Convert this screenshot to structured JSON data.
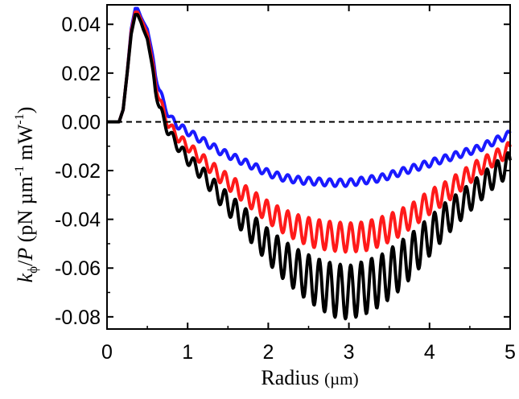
{
  "chart_data": {
    "type": "line",
    "title": "",
    "xlabel": "Radius (µm)",
    "xlabel_parts": {
      "main": "Radius ",
      "unit": "(µm)"
    },
    "ylabel": "kϕ/P (pN µm⁻¹ mW⁻¹)",
    "ylabel_parts": {
      "k": "k",
      "sub": "ϕ",
      "slash": "/",
      "p": "P",
      "open": " (pN µm",
      "exp1": "-1",
      "mid": " mW",
      "exp2": "-1",
      "close": ")"
    },
    "xlim": [
      0,
      5
    ],
    "ylim": [
      -0.085,
      0.048
    ],
    "x_ticks": [
      0,
      1,
      2,
      3,
      4,
      5
    ],
    "x_tick_labels": [
      "0",
      "1",
      "2",
      "3",
      "4",
      "5"
    ],
    "y_ticks": [
      0.04,
      0.02,
      0.0,
      -0.02,
      -0.04,
      -0.06,
      -0.08
    ],
    "y_tick_labels": [
      "0.04",
      "0.02",
      "0.00",
      "-0.02",
      "-0.04",
      "-0.06",
      "-0.08"
    ],
    "grid": false,
    "reference_line": {
      "y": 0.0,
      "style": "dashed",
      "color": "#000000"
    },
    "series": [
      {
        "color": "#1a1aff",
        "x": [
          0.0,
          0.1,
          0.15,
          0.2,
          0.25,
          0.3,
          0.35,
          0.38,
          0.42,
          0.45,
          0.5,
          0.55,
          0.6,
          0.65,
          0.7,
          0.75,
          0.8,
          0.9,
          1.0,
          1.2,
          1.4,
          1.6,
          1.8,
          2.0,
          2.2,
          2.4,
          2.6,
          2.8,
          3.0,
          3.2,
          3.4,
          3.6,
          3.8,
          4.0,
          4.2,
          4.4,
          4.6,
          4.8,
          5.0
        ],
        "y": [
          0.0,
          0.0,
          0.0,
          0.005,
          0.02,
          0.038,
          0.0465,
          0.0465,
          0.043,
          0.041,
          0.038,
          0.03,
          0.02,
          0.013,
          0.008,
          0.004,
          0.001,
          -0.002,
          -0.004,
          -0.008,
          -0.012,
          -0.015,
          -0.018,
          -0.021,
          -0.023,
          -0.024,
          -0.0245,
          -0.025,
          -0.025,
          -0.024,
          -0.023,
          -0.021,
          -0.019,
          -0.017,
          -0.015,
          -0.013,
          -0.011,
          -0.008,
          -0.005
        ],
        "ripple": [
          0,
          0,
          0,
          0,
          0,
          0,
          0,
          0,
          0,
          0,
          0,
          0,
          0.0015,
          0.0015,
          0.0015,
          0.0015,
          0.0015,
          0.0015,
          0.0015,
          0.0015,
          0.0015,
          0.0015,
          0.0015,
          0.0015,
          0.0015,
          0.0015,
          0.0015,
          0.0015,
          0.0015,
          0.0015,
          0.0015,
          0.0015,
          0.0015,
          0.0015,
          0.0015,
          0.0015,
          0.0015,
          0.0015,
          0.0015
        ]
      },
      {
        "color": "#ff1a1a",
        "x": [
          0.0,
          0.1,
          0.15,
          0.2,
          0.25,
          0.3,
          0.35,
          0.38,
          0.42,
          0.45,
          0.5,
          0.55,
          0.6,
          0.65,
          0.7,
          0.75,
          0.8,
          0.9,
          1.0,
          1.2,
          1.4,
          1.6,
          1.8,
          2.0,
          2.2,
          2.4,
          2.6,
          2.8,
          3.0,
          3.2,
          3.4,
          3.6,
          3.8,
          4.0,
          4.2,
          4.4,
          4.6,
          4.8,
          5.0
        ],
        "y": [
          0.0,
          0.0,
          0.0,
          0.005,
          0.02,
          0.037,
          0.045,
          0.045,
          0.042,
          0.04,
          0.036,
          0.027,
          0.017,
          0.009,
          0.004,
          0.0,
          -0.003,
          -0.007,
          -0.01,
          -0.016,
          -0.022,
          -0.027,
          -0.032,
          -0.037,
          -0.041,
          -0.044,
          -0.046,
          -0.047,
          -0.0475,
          -0.047,
          -0.045,
          -0.042,
          -0.038,
          -0.033,
          -0.029,
          -0.024,
          -0.019,
          -0.015,
          -0.011
        ],
        "ripple": [
          0,
          0,
          0,
          0,
          0,
          0,
          0,
          0,
          0,
          0,
          0,
          0,
          0.002,
          0.002,
          0.002,
          0.002,
          0.002,
          0.002,
          0.002,
          0.0025,
          0.003,
          0.0035,
          0.004,
          0.0045,
          0.005,
          0.0055,
          0.006,
          0.006,
          0.006,
          0.006,
          0.006,
          0.0055,
          0.005,
          0.005,
          0.0045,
          0.004,
          0.0035,
          0.003,
          0.003
        ]
      },
      {
        "color": "#000000",
        "x": [
          0.0,
          0.1,
          0.15,
          0.2,
          0.25,
          0.3,
          0.35,
          0.38,
          0.42,
          0.45,
          0.5,
          0.55,
          0.6,
          0.65,
          0.7,
          0.75,
          0.8,
          0.9,
          1.0,
          1.2,
          1.4,
          1.6,
          1.8,
          2.0,
          2.2,
          2.4,
          2.6,
          2.8,
          3.0,
          3.2,
          3.4,
          3.6,
          3.8,
          4.0,
          4.2,
          4.4,
          4.6,
          4.8,
          5.0
        ],
        "y": [
          0.0,
          0.0,
          0.0,
          0.005,
          0.02,
          0.036,
          0.044,
          0.044,
          0.041,
          0.038,
          0.034,
          0.025,
          0.014,
          0.006,
          0.001,
          -0.003,
          -0.006,
          -0.011,
          -0.015,
          -0.022,
          -0.03,
          -0.037,
          -0.044,
          -0.051,
          -0.057,
          -0.062,
          -0.066,
          -0.069,
          -0.07,
          -0.068,
          -0.065,
          -0.06,
          -0.054,
          -0.047,
          -0.04,
          -0.034,
          -0.028,
          -0.022,
          -0.017
        ],
        "ripple": [
          0,
          0,
          0,
          0,
          0,
          0,
          0,
          0,
          0,
          0,
          0,
          0,
          0.002,
          0.002,
          0.002,
          0.002,
          0.002,
          0.002,
          0.0025,
          0.003,
          0.004,
          0.005,
          0.006,
          0.007,
          0.008,
          0.009,
          0.01,
          0.011,
          0.011,
          0.011,
          0.0105,
          0.01,
          0.009,
          0.008,
          0.007,
          0.006,
          0.0055,
          0.005,
          0.005
        ]
      }
    ],
    "ripple_period": 0.13
  }
}
